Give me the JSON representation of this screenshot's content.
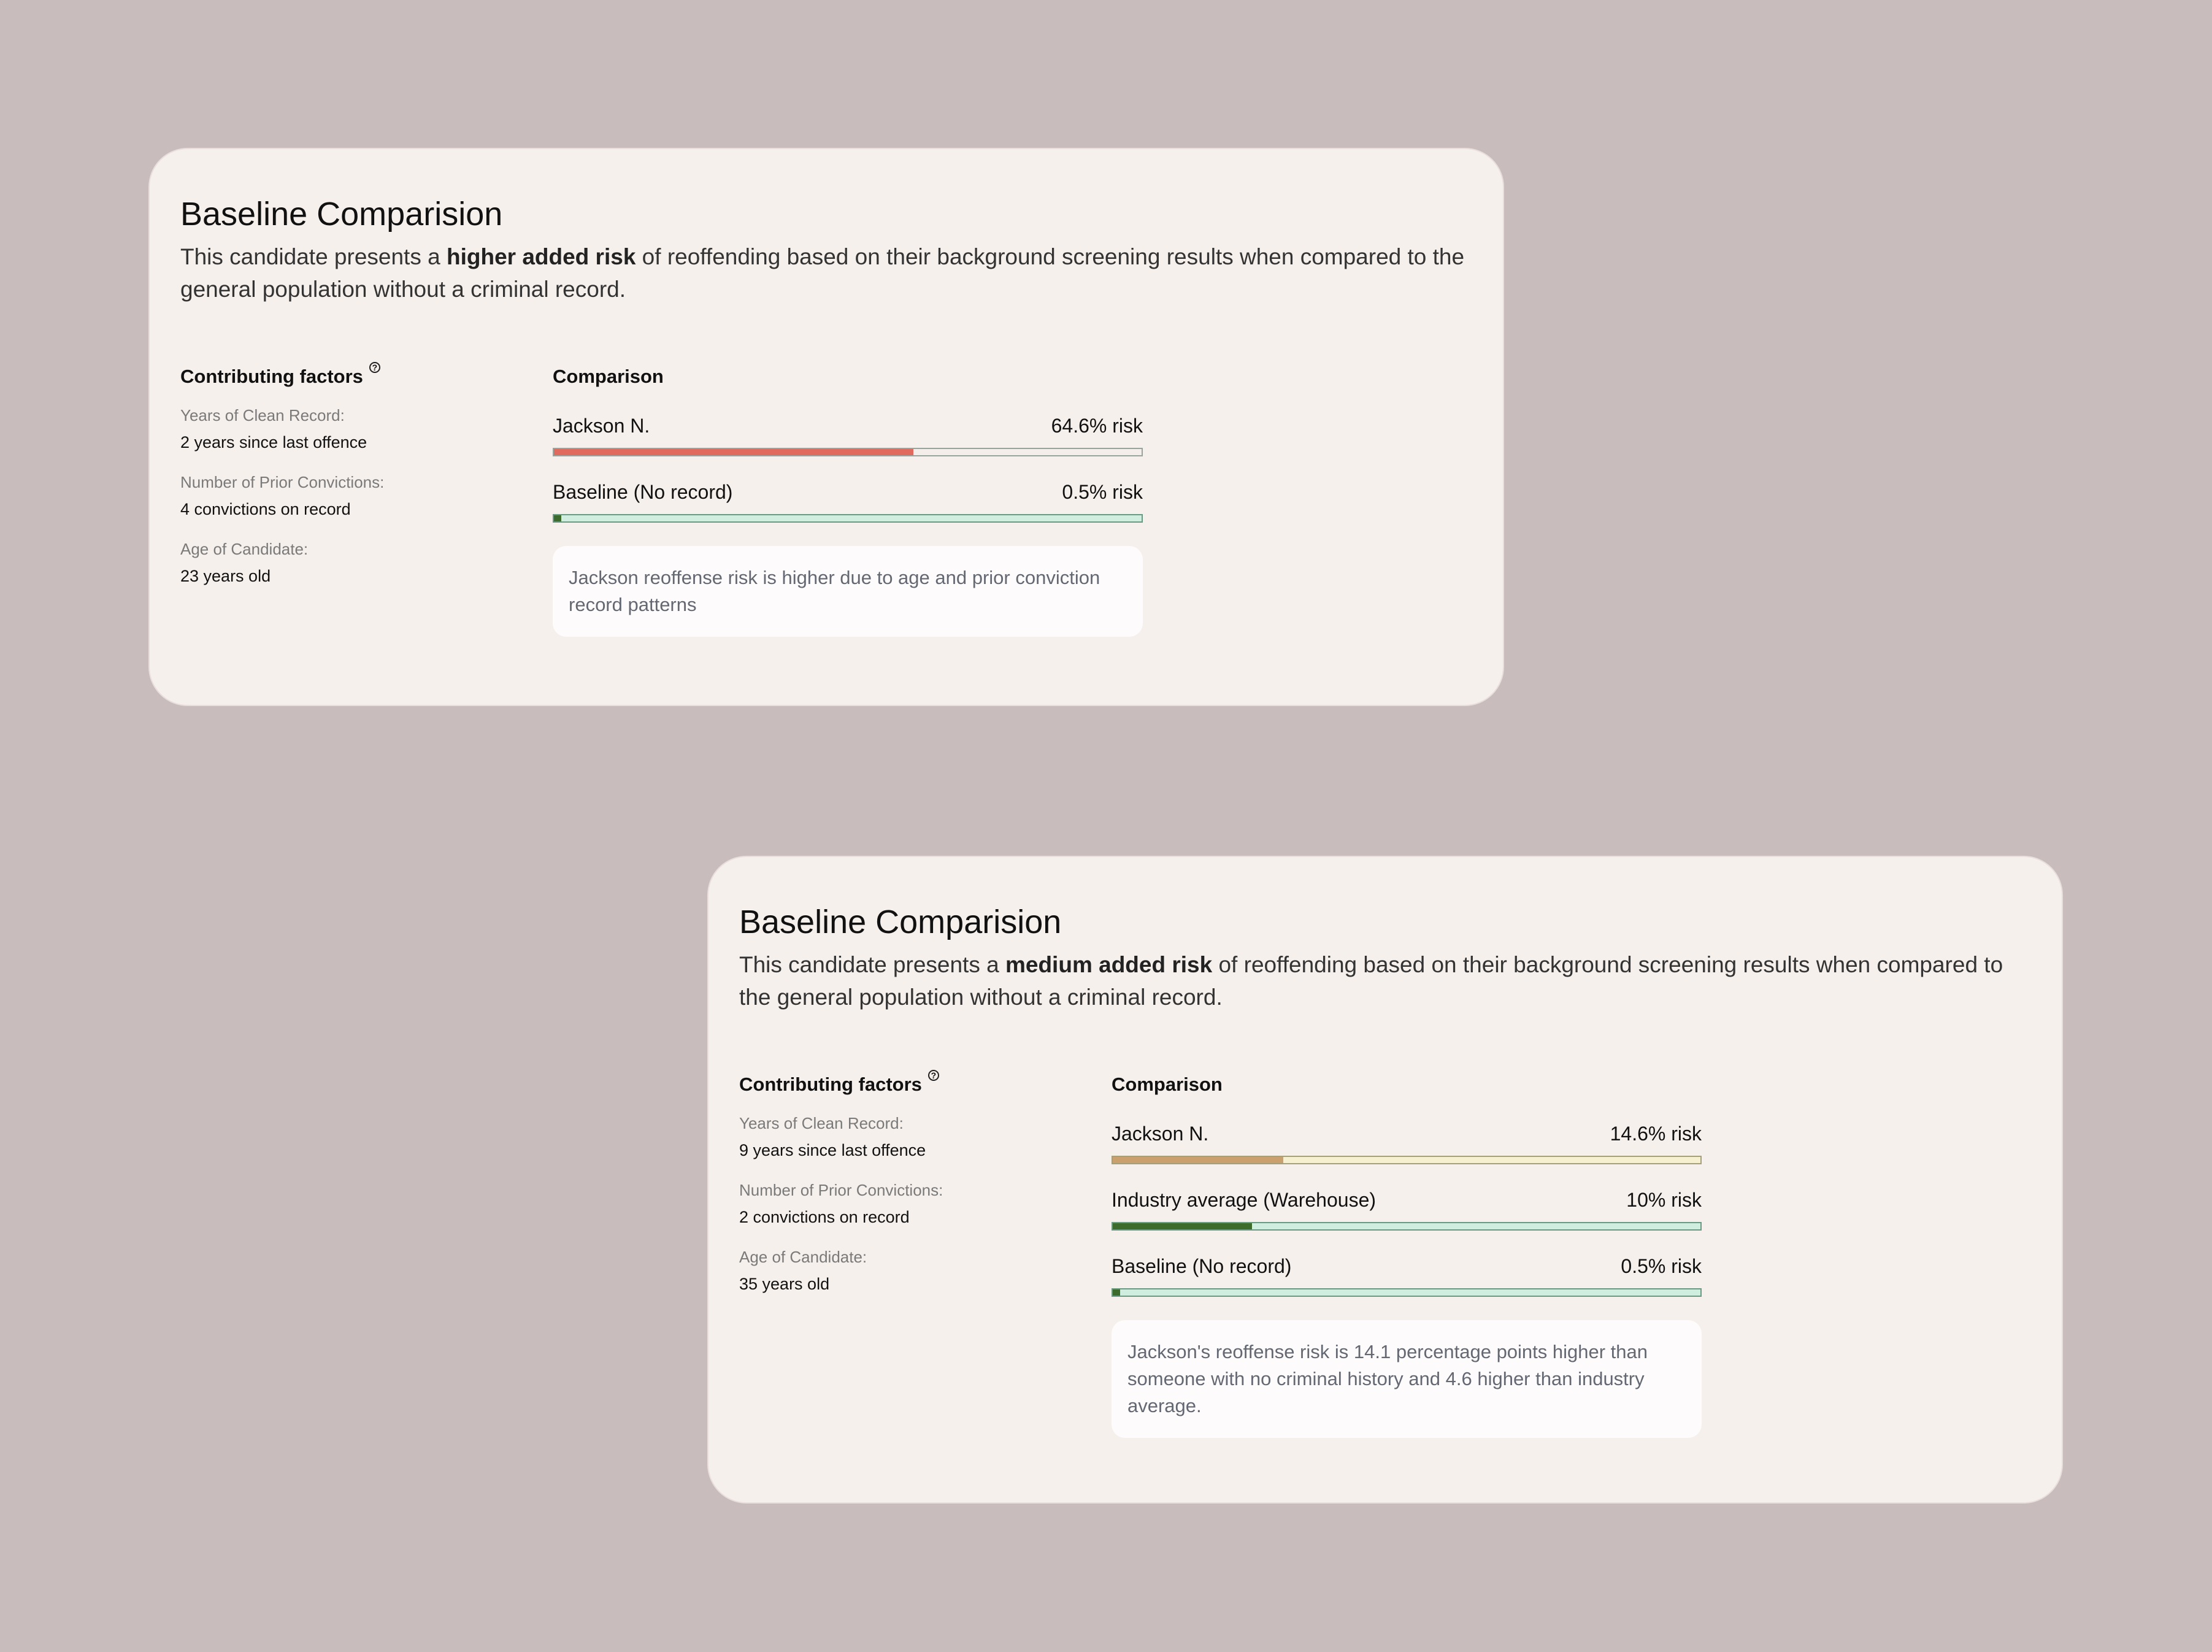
{
  "cards": [
    {
      "title": "Baseline Comparision",
      "desc_pre": "This candidate presents a ",
      "desc_bold": "higher added risk",
      "desc_post": " of reoffending based on their background screening results when compared to the general population without a criminal record.",
      "factors_heading": "Contributing factors",
      "help_icon": "question-circle-icon",
      "factors": [
        {
          "label": "Years of Clean Record:",
          "value": "2 years since last offence"
        },
        {
          "label": "Number of Prior Convictions:",
          "value": "4 convictions on record"
        },
        {
          "label": "Age of Candidate:",
          "value": "23 years old"
        }
      ],
      "comparison_heading": "Comparison",
      "rows": [
        {
          "label": "Jackson N.",
          "risk": "64.6% risk",
          "fraction": 0.612,
          "fill": "#e06a5e",
          "track": "#f3eee9",
          "border": "#9aa49e"
        },
        {
          "label": "Baseline (No record)",
          "risk": "0.5% risk",
          "fraction": 0.013,
          "fill": "#3d6b2c",
          "track": "#cfeee0",
          "border": "#6b9a82"
        }
      ],
      "note": "Jackson reoffense risk is higher due to age and prior conviction record patterns"
    },
    {
      "title": "Baseline Comparision",
      "desc_pre": "This candidate presents a ",
      "desc_bold": "medium added risk",
      "desc_post": " of reoffending based on their background screening results when compared to the general population without a criminal record.",
      "factors_heading": "Contributing factors",
      "help_icon": "question-circle-icon",
      "factors": [
        {
          "label": "Years of Clean Record:",
          "value": "9 years since last offence"
        },
        {
          "label": "Number of Prior Convictions:",
          "value": "2 convictions on record"
        },
        {
          "label": "Age of Candidate:",
          "value": "35 years old"
        }
      ],
      "comparison_heading": "Comparison",
      "rows": [
        {
          "label": "Jackson N.",
          "risk": "14.6% risk",
          "fraction": 0.29,
          "fill": "#c9a06e",
          "track": "#f7f0d0",
          "border": "#a6a07a"
        },
        {
          "label": "Industry average (Warehouse)",
          "risk": "10% risk",
          "fraction": 0.237,
          "fill": "#3d6b2c",
          "track": "#cfeee0",
          "border": "#6b9a82"
        },
        {
          "label": "Baseline (No record)",
          "risk": "0.5% risk",
          "fraction": 0.013,
          "fill": "#3d6b2c",
          "track": "#cfeee0",
          "border": "#6b9a82"
        }
      ],
      "note": "Jackson's reoffense risk is 14.1 percentage points higher than someone with no criminal history and 4.6 higher than industry average."
    }
  ]
}
